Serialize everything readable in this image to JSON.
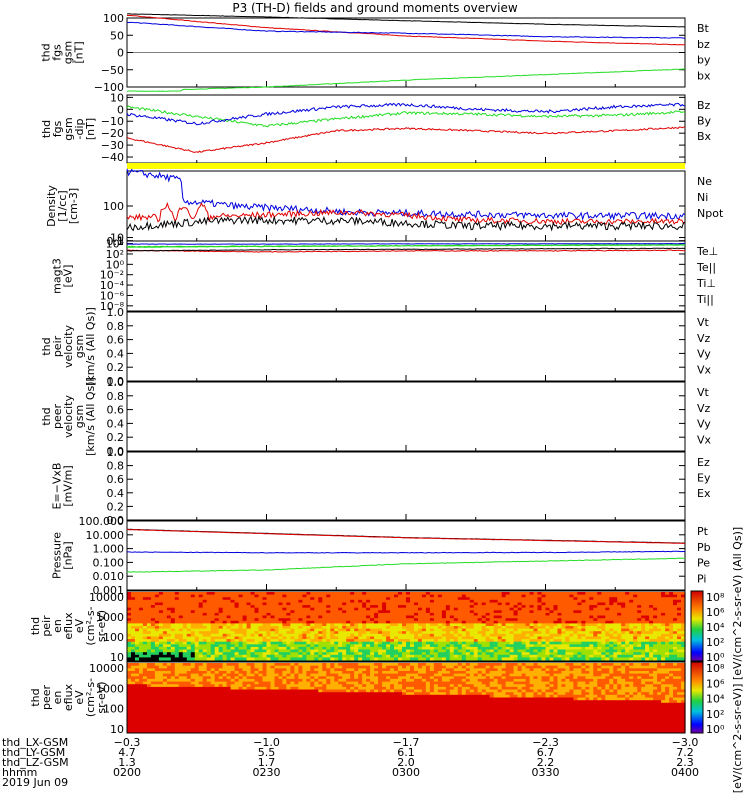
{
  "title": "P3 (TH-D) fields and ground moments overview",
  "colors": {
    "black": "#000000",
    "red": "#e00000",
    "green": "#22dd22",
    "blue": "#0000dd",
    "yellow": "#ffff00"
  },
  "panels": [
    {
      "id": "fgs-b",
      "ylabel": [
        "thd",
        "fgs",
        "gsm",
        "[nT]"
      ],
      "ticks": [
        "100",
        "50",
        "0",
        "−50",
        "−100"
      ],
      "tickvals": [
        100,
        50,
        0,
        -50,
        -100
      ],
      "ylim": [
        -100,
        100
      ],
      "log": false,
      "legend": [
        {
          "t": "Bt",
          "c": "black"
        },
        {
          "t": "bz",
          "c": "red"
        },
        {
          "t": "by",
          "c": "green"
        },
        {
          "t": "bx",
          "c": "blue"
        }
      ]
    },
    {
      "id": "fgs-dB",
      "ylabel": [
        "thd",
        "fgs",
        "gsm",
        "-dip",
        "[nT]"
      ],
      "ticks": [
        "10",
        "0",
        "−10",
        "−20",
        "−30",
        "−40"
      ],
      "tickvals": [
        10,
        0,
        -10,
        -20,
        -30,
        -40
      ],
      "ylim": [
        -45,
        12
      ],
      "log": false,
      "legend": [
        {
          "t": "Bz",
          "c": "red"
        },
        {
          "t": "By",
          "c": "green"
        },
        {
          "t": "Bx",
          "c": "blue"
        }
      ]
    },
    {
      "id": "density",
      "ylabel": [
        "Density",
        "[1/cc]",
        "[cm-3]"
      ],
      "ticks": [
        "100",
        "10",
        "1",
        "0.1"
      ],
      "tickvals": [
        100,
        10,
        1,
        0.1
      ],
      "ylim": [
        0.05,
        200
      ],
      "log": true,
      "legend": [
        {
          "t": "Ne",
          "c": "red"
        },
        {
          "t": "Ni",
          "c": "black"
        },
        {
          "t": "Npot",
          "c": "blue"
        }
      ]
    },
    {
      "id": "temp",
      "ylabel": [
        "magt3",
        "[eV]"
      ],
      "ticks": [
        "10⁴",
        "10²",
        "10⁰",
        "10⁻²",
        "10⁻⁴",
        "10⁻⁶",
        "10⁻⁸"
      ],
      "tickvals": [
        4,
        2,
        0,
        -2,
        -4,
        -6,
        -8
      ],
      "ylim": [
        -9,
        4.5
      ],
      "log": false,
      "legend": [
        {
          "t": "Te⊥",
          "c": "red"
        },
        {
          "t": "Te||",
          "c": "black"
        },
        {
          "t": "Ti⊥",
          "c": "green"
        },
        {
          "t": "Ti||",
          "c": "green"
        }
      ]
    },
    {
      "id": "vi",
      "ylabel": [
        "thd",
        "peir",
        "velocity",
        "gsm",
        "[km/s (All Qs)]"
      ],
      "ticks": [
        "1.0",
        "0.8",
        "0.6",
        "0.4",
        "0.2",
        "0.0"
      ],
      "tickvals": [
        1,
        0.8,
        0.6,
        0.4,
        0.2,
        0
      ],
      "ylim": [
        0,
        1
      ],
      "log": false,
      "legend": [
        {
          "t": "Vt",
          "c": "black"
        },
        {
          "t": "Vz",
          "c": "red"
        },
        {
          "t": "Vy",
          "c": "green"
        },
        {
          "t": "Vx",
          "c": "blue"
        }
      ]
    },
    {
      "id": "ve",
      "ylabel": [
        "thd",
        "peer",
        "velocity",
        "gsm",
        "[km/s (All Qs)]"
      ],
      "ticks": [
        "1.0",
        "0.8",
        "0.6",
        "0.4",
        "0.2",
        "0.0"
      ],
      "tickvals": [
        1,
        0.8,
        0.6,
        0.4,
        0.2,
        0
      ],
      "ylim": [
        0,
        1
      ],
      "log": false,
      "legend": [
        {
          "t": "Vt",
          "c": "black"
        },
        {
          "t": "Vz",
          "c": "red"
        },
        {
          "t": "Vy",
          "c": "green"
        },
        {
          "t": "Vx",
          "c": "blue"
        }
      ]
    },
    {
      "id": "efield",
      "ylabel": [
        "E=−VxB",
        "[mV/m]"
      ],
      "ticks": [
        "1.0",
        "0.8",
        "0.6",
        "0.4",
        "0.2",
        "0.0"
      ],
      "tickvals": [
        1,
        0.8,
        0.6,
        0.4,
        0.2,
        0
      ],
      "ylim": [
        0,
        1
      ],
      "log": false,
      "legend": [
        {
          "t": "Ez",
          "c": "red"
        },
        {
          "t": "Ey",
          "c": "green"
        },
        {
          "t": "Ex",
          "c": "blue"
        }
      ]
    },
    {
      "id": "pressure",
      "ylabel": [
        "Pressure",
        "[nPa]"
      ],
      "ticks": [
        "100.000",
        "10.000",
        "1.000",
        "0.100",
        "0.010",
        "0.001"
      ],
      "tickvals": [
        2,
        1,
        0,
        -1,
        -2,
        -3
      ],
      "ylim": [
        -3,
        2
      ],
      "log": false,
      "legend": [
        {
          "t": "Pt",
          "c": "black"
        },
        {
          "t": "Pb",
          "c": "red"
        },
        {
          "t": "Pe",
          "c": "green"
        },
        {
          "t": "Pi",
          "c": "blue"
        }
      ]
    },
    {
      "id": "spec-i",
      "ylabel": [
        "thd",
        "peir",
        "en",
        "eflux",
        "eV",
        "(cm²-s-",
        "sr-eV)"
      ],
      "ticks": [
        "10000",
        "1000",
        "100",
        "10"
      ],
      "tickvals": [
        4,
        3,
        2,
        1
      ],
      "ylim": [
        0.8,
        4.3
      ],
      "log": false,
      "legend": []
    },
    {
      "id": "spec-e",
      "ylabel": [
        "thd",
        "peer",
        "en",
        "eflux",
        "eV",
        "(cm²-s-",
        "sr-eV)"
      ],
      "ticks": [
        "10000",
        "1000",
        "100",
        "10"
      ],
      "tickvals": [
        4,
        3,
        2,
        1
      ],
      "ylim": [
        0.8,
        4.3
      ],
      "log": false,
      "legend": []
    }
  ],
  "colorbar": {
    "ticks": [
      "10⁸",
      "10⁶",
      "10⁴",
      "10²",
      "10⁰"
    ],
    "label": "[eV/(cm^2-s-sr-eV)]  [eV/(cm^2-s-sr-eV) (All Qs)]"
  },
  "xaxis": {
    "rows": [
      {
        "label": "thd_LX-GSM",
        "vals": [
          "−0.3",
          "−1.0",
          "−1.7",
          "−2.3",
          "−3.0"
        ]
      },
      {
        "label": "thd_LY-GSM",
        "vals": [
          "4.7",
          "5.5",
          "6.1",
          "6.7",
          "7.2"
        ]
      },
      {
        "label": "thd_LZ-GSM",
        "vals": [
          "1.3",
          "1.7",
          "2.0",
          "2.2",
          "2.3"
        ]
      },
      {
        "label": "hhmm",
        "vals": [
          "0200",
          "0230",
          "0300",
          "0330",
          "0400"
        ]
      }
    ],
    "date": "2019 Jun 09"
  },
  "chart_data": {
    "type": "line",
    "title": "P3 (TH-D) fields and ground moments overview",
    "x": [
      "0200",
      "0230",
      "0300",
      "0330",
      "0400"
    ],
    "series": [
      {
        "name": "Bt",
        "values": [
          110,
          100,
          88,
          78,
          72
        ]
      },
      {
        "name": "bz",
        "values": [
          105,
          75,
          50,
          35,
          25
        ]
      },
      {
        "name": "by",
        "values": [
          -110,
          -100,
          -80,
          -65,
          -50
        ]
      },
      {
        "name": "bx",
        "values": [
          85,
          62,
          55,
          45,
          40
        ]
      },
      {
        "name": "Bz",
        "values": [
          -30,
          -35,
          -18,
          -20,
          -15
        ]
      },
      {
        "name": "By",
        "values": [
          2,
          -12,
          -4,
          -7,
          -3
        ]
      },
      {
        "name": "Bx",
        "values": [
          -5,
          -8,
          2,
          -3,
          3
        ]
      },
      {
        "name": "Ne",
        "values": [
          0.6,
          1.5,
          0.5,
          0.5,
          0.6
        ]
      },
      {
        "name": "Ni",
        "values": [
          0.3,
          0.7,
          0.4,
          0.3,
          0.3
        ]
      },
      {
        "name": "Npot",
        "values": [
          150,
          10,
          1.5,
          1.2,
          1.0
        ]
      },
      {
        "name": "Pt",
        "values": [
          25,
          12,
          6,
          4,
          2.5
        ]
      },
      {
        "name": "Pb",
        "values": [
          25,
          12,
          6,
          4,
          2.5
        ]
      },
      {
        "name": "Pe",
        "values": [
          0.02,
          0.03,
          0.08,
          0.12,
          0.2
        ]
      },
      {
        "name": "Pi",
        "values": [
          0.6,
          0.5,
          0.5,
          0.55,
          0.6
        ]
      }
    ]
  }
}
